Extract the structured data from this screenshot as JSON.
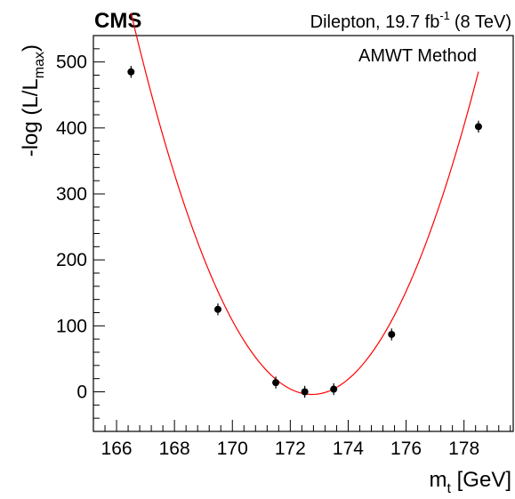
{
  "header": {
    "experiment": "CMS",
    "dataset_prefix": "Dilepton, 19.7 fb",
    "dataset_superscript": "-1",
    "energy": "(8 TeV)"
  },
  "legend": {
    "text": "AMWT Method"
  },
  "colors": {
    "fit_curve": "#ff0000",
    "points": "#000000",
    "frame": "#000000"
  },
  "chart_data": {
    "type": "scatter",
    "xlabel": {
      "main": "m",
      "sub": "t",
      "rest": " [GeV]"
    },
    "ylabel": {
      "pre": "-log (L/L",
      "sub": "max",
      "post": ")"
    },
    "xlim": [
      165.2,
      179.7
    ],
    "ylim": [
      -60,
      540
    ],
    "xticks": [
      166,
      168,
      170,
      172,
      174,
      176,
      178
    ],
    "yticks": [
      0,
      100,
      200,
      300,
      400,
      500
    ],
    "grid": false,
    "series": [
      {
        "type": "points_with_errors",
        "x": [
          166.5,
          169.5,
          171.5,
          172.5,
          173.5,
          175.5,
          178.5
        ],
        "y": [
          485,
          125,
          14,
          0,
          4,
          87,
          402
        ],
        "yerr": [
          9,
          9,
          9,
          9,
          9,
          9,
          9
        ]
      },
      {
        "type": "fit_curve",
        "function": "parabola",
        "x_range": [
          166.5,
          178.5
        ],
        "minimum_x": 172.75,
        "minimum_y": -4,
        "curvature": 14.8
      }
    ]
  }
}
